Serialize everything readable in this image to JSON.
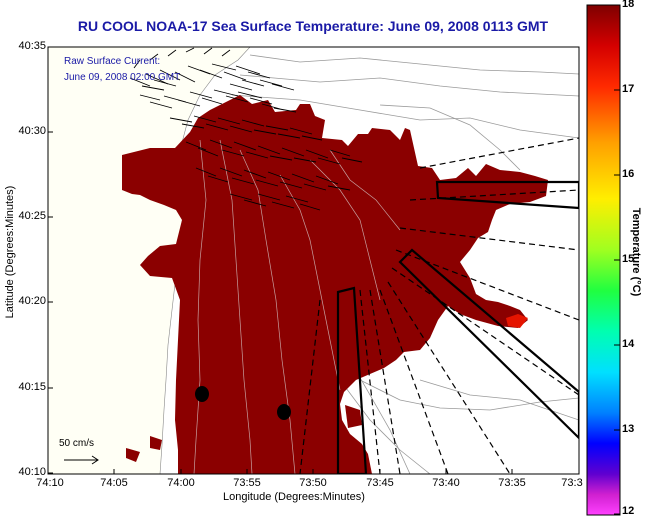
{
  "title": "RU COOL   NOAA-17  Sea Surface Temperature:  June 09, 2008 0113 GMT",
  "overlay": {
    "current_title": "Raw Surface Current:",
    "current_date": "June 09, 2008 02:00 GMT"
  },
  "axes": {
    "ylabel": "Latitude (Degrees:Minutes)",
    "xlabel": "Longitude (Degrees:Minutes)",
    "yticks": [
      "40:35",
      "40:30",
      "40:25",
      "40:20",
      "40:15",
      "40:10"
    ],
    "xticks": [
      "74:10",
      "74:05",
      "74:00",
      "73:55",
      "73:50",
      "73:45",
      "73:40",
      "73:35",
      "73:3"
    ]
  },
  "scale": {
    "label": "50 cm/s"
  },
  "colorbar": {
    "title": "Temperature (°C)",
    "ticks": [
      "18",
      "17",
      "16",
      "15",
      "14",
      "13",
      "12"
    ]
  },
  "colors": {
    "sst": "#8b0000",
    "land": "#fffff5",
    "title": "#1a1aa6"
  }
}
